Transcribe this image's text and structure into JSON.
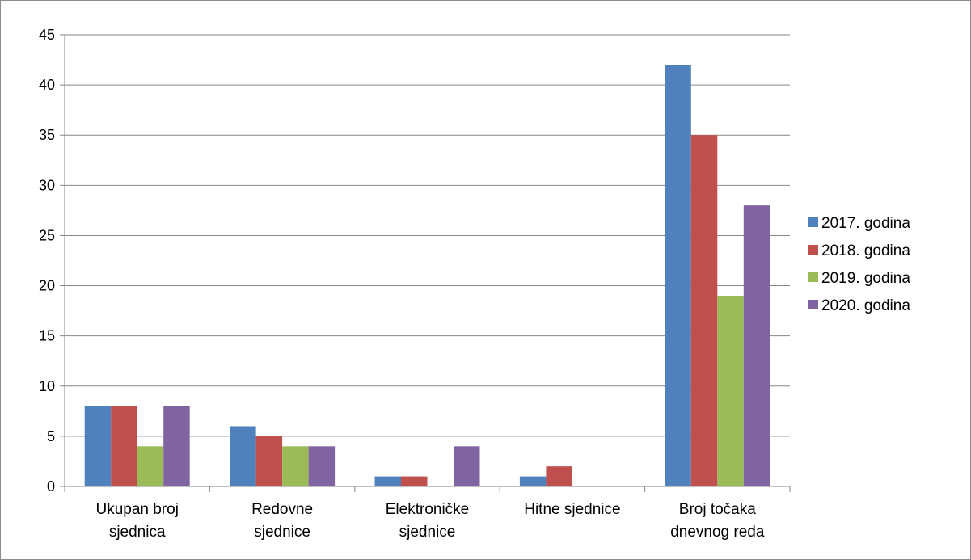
{
  "chart_data": {
    "type": "bar",
    "title": "",
    "xlabel": "",
    "ylabel": "",
    "ylim": [
      0,
      45
    ],
    "yticks": [
      0,
      5,
      10,
      15,
      20,
      25,
      30,
      35,
      40,
      45
    ],
    "grid": true,
    "legend_position": "right",
    "categories": [
      [
        "Ukupan broj",
        "sjednica"
      ],
      [
        "Redovne",
        "sjednice"
      ],
      [
        "Elektroničke",
        "sjednice"
      ],
      [
        "Hitne sjednice"
      ],
      [
        "Broj točaka",
        "dnevnog reda"
      ]
    ],
    "series": [
      {
        "name": "2017. godina",
        "color": "#4f81bd",
        "values": [
          8,
          6,
          1,
          1,
          42
        ]
      },
      {
        "name": "2018. godina",
        "color": "#c0504d",
        "values": [
          8,
          5,
          1,
          2,
          35
        ]
      },
      {
        "name": "2019. godina",
        "color": "#9bbb59",
        "values": [
          4,
          4,
          0,
          0,
          19
        ]
      },
      {
        "name": "2020. godina",
        "color": "#8064a2",
        "values": [
          8,
          4,
          4,
          0,
          28
        ]
      }
    ]
  }
}
